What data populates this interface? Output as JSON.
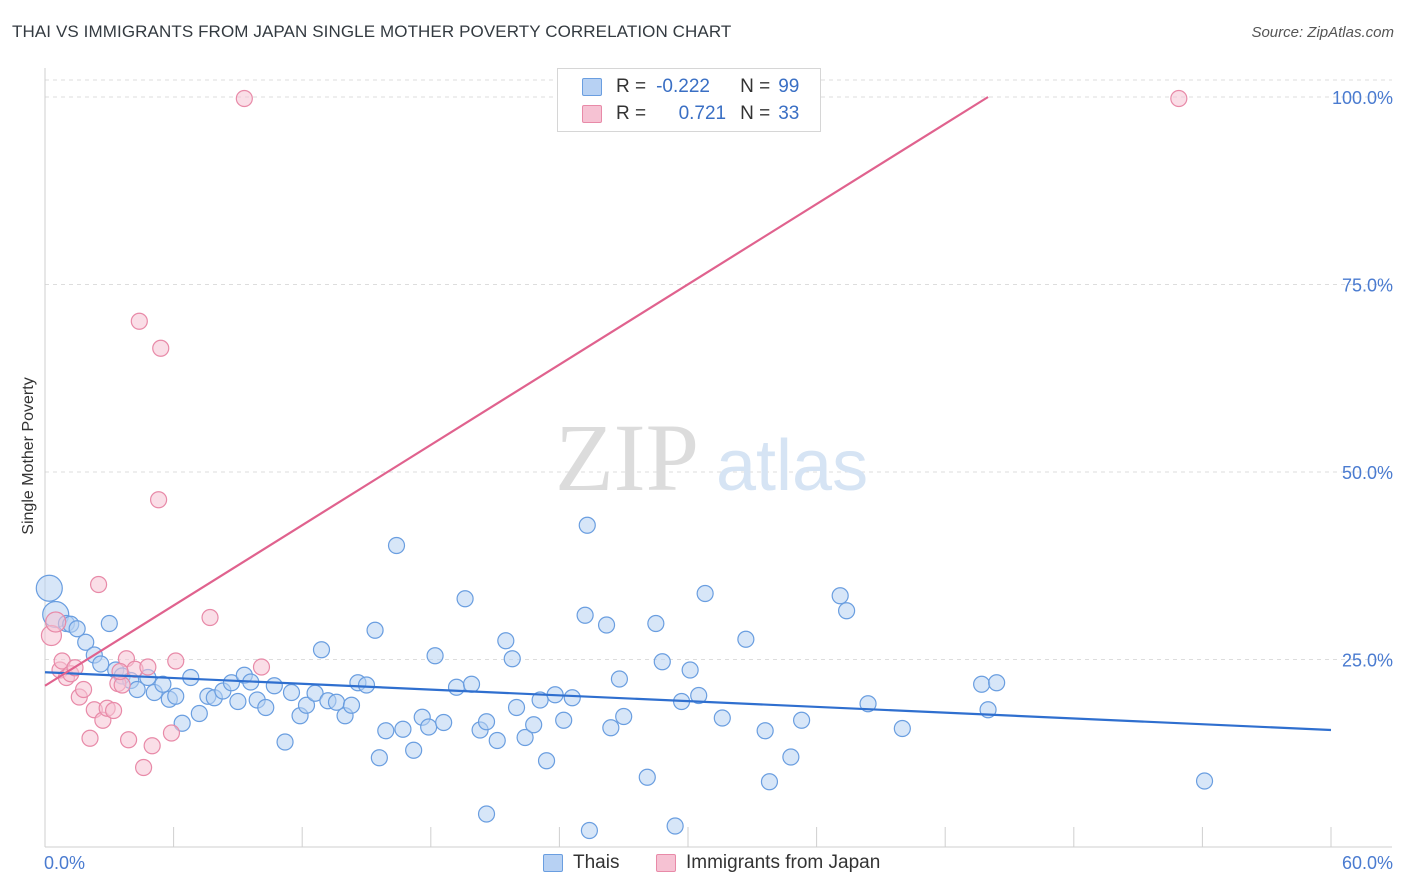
{
  "title": "THAI VS IMMIGRANTS FROM JAPAN SINGLE MOTHER POVERTY CORRELATION CHART",
  "source": "Source: ZipAtlas.com",
  "watermark": {
    "zip": "ZIP",
    "atlas": "atlas"
  },
  "legend": {
    "series1": {
      "r_label": "R =",
      "r_value": "-0.222",
      "n_label": "N =",
      "n_value": "99"
    },
    "series2": {
      "r_label": "R =",
      "r_value": "0.721",
      "n_label": "N =",
      "n_value": "33"
    }
  },
  "bottom_legend": {
    "series1": "Thais",
    "series2": "Immigrants from Japan"
  },
  "colors": {
    "blue_fill": "#b7d1f3",
    "blue_stroke": "#6a9ee0",
    "blue_line": "#2f6fcf",
    "pink_fill": "#f6c2d3",
    "pink_stroke": "#e88aa8",
    "pink_line": "#e0628e",
    "axis_text": "#4a7bd0",
    "grid": "#dddddd"
  },
  "chart_data": {
    "type": "scatter",
    "title": "THAI VS IMMIGRANTS FROM JAPAN SINGLE MOTHER POVERTY CORRELATION CHART",
    "xlabel": "",
    "ylabel": "Single Mother Poverty",
    "xlim": [
      0,
      60
    ],
    "ylim": [
      0,
      100
    ],
    "x_tick_labels": [
      "0.0%",
      "60.0%"
    ],
    "y_ticks": [
      25,
      50,
      75,
      100
    ],
    "y_tick_labels": [
      "25.0%",
      "50.0%",
      "75.0%",
      "100.0%"
    ],
    "series": [
      {
        "name": "Thais",
        "r": -0.222,
        "n": 99,
        "trend": {
          "x": [
            0,
            60
          ],
          "y": [
            23.3,
            15.6
          ]
        },
        "points": [
          [
            0.2,
            34.5
          ],
          [
            0.5,
            31.0
          ],
          [
            1.0,
            29.8
          ],
          [
            1.2,
            29.7
          ],
          [
            1.5,
            29.1
          ],
          [
            1.9,
            27.3
          ],
          [
            2.3,
            25.6
          ],
          [
            2.6,
            24.4
          ],
          [
            3.0,
            29.8
          ],
          [
            3.3,
            23.6
          ],
          [
            3.6,
            22.8
          ],
          [
            4.0,
            22.2
          ],
          [
            4.3,
            21.0
          ],
          [
            4.8,
            22.6
          ],
          [
            5.1,
            20.6
          ],
          [
            5.5,
            21.7
          ],
          [
            5.8,
            19.7
          ],
          [
            6.1,
            20.1
          ],
          [
            6.4,
            16.5
          ],
          [
            6.8,
            22.6
          ],
          [
            7.2,
            17.8
          ],
          [
            7.6,
            20.1
          ],
          [
            7.9,
            19.9
          ],
          [
            8.3,
            20.8
          ],
          [
            8.7,
            21.9
          ],
          [
            9.0,
            19.4
          ],
          [
            9.3,
            22.9
          ],
          [
            9.6,
            22.0
          ],
          [
            9.9,
            19.6
          ],
          [
            10.3,
            18.6
          ],
          [
            10.7,
            21.5
          ],
          [
            11.2,
            14.0
          ],
          [
            11.5,
            20.6
          ],
          [
            11.9,
            17.5
          ],
          [
            12.2,
            18.9
          ],
          [
            12.6,
            20.5
          ],
          [
            12.9,
            26.3
          ],
          [
            13.2,
            19.5
          ],
          [
            13.6,
            19.3
          ],
          [
            14.0,
            17.5
          ],
          [
            14.3,
            18.9
          ],
          [
            14.6,
            21.9
          ],
          [
            15.0,
            21.6
          ],
          [
            15.4,
            28.9
          ],
          [
            15.6,
            11.9
          ],
          [
            15.9,
            15.5
          ],
          [
            16.4,
            40.2
          ],
          [
            16.7,
            15.7
          ],
          [
            17.2,
            12.9
          ],
          [
            17.6,
            17.3
          ],
          [
            17.9,
            16.0
          ],
          [
            18.2,
            25.5
          ],
          [
            18.6,
            16.6
          ],
          [
            19.2,
            21.3
          ],
          [
            19.6,
            33.1
          ],
          [
            19.9,
            21.7
          ],
          [
            20.3,
            15.6
          ],
          [
            20.6,
            16.7
          ],
          [
            21.1,
            14.2
          ],
          [
            21.5,
            27.5
          ],
          [
            21.8,
            25.1
          ],
          [
            22.0,
            18.6
          ],
          [
            22.4,
            14.6
          ],
          [
            22.8,
            16.3
          ],
          [
            23.1,
            19.6
          ],
          [
            23.4,
            11.5
          ],
          [
            23.8,
            20.3
          ],
          [
            24.2,
            16.9
          ],
          [
            24.6,
            19.9
          ],
          [
            25.2,
            30.9
          ],
          [
            25.4,
            2.2
          ],
          [
            26.2,
            29.6
          ],
          [
            26.4,
            15.9
          ],
          [
            26.8,
            22.4
          ],
          [
            27.0,
            17.4
          ],
          [
            28.1,
            9.3
          ],
          [
            28.5,
            29.8
          ],
          [
            28.8,
            24.7
          ],
          [
            29.4,
            2.8
          ],
          [
            29.7,
            19.4
          ],
          [
            30.1,
            23.6
          ],
          [
            30.5,
            20.2
          ],
          [
            30.8,
            33.8
          ],
          [
            31.6,
            17.2
          ],
          [
            32.7,
            27.7
          ],
          [
            33.6,
            15.5
          ],
          [
            33.8,
            8.7
          ],
          [
            34.8,
            12.0
          ],
          [
            35.3,
            16.9
          ],
          [
            37.1,
            33.5
          ],
          [
            37.4,
            31.5
          ],
          [
            38.4,
            19.1
          ],
          [
            40.0,
            15.8
          ],
          [
            43.7,
            21.7
          ],
          [
            44.0,
            18.3
          ],
          [
            44.4,
            21.9
          ],
          [
            54.1,
            8.8
          ],
          [
            25.3,
            42.9
          ],
          [
            20.6,
            4.4
          ]
        ]
      },
      {
        "name": "Immigrants from Japan",
        "r": 0.721,
        "n": 33,
        "trend": {
          "x": [
            0,
            44
          ],
          "y": [
            21.5,
            100
          ]
        },
        "points": [
          [
            0.3,
            28.2
          ],
          [
            0.5,
            30.0
          ],
          [
            0.7,
            23.6
          ],
          [
            0.8,
            24.8
          ],
          [
            1.0,
            22.6
          ],
          [
            1.2,
            23.1
          ],
          [
            1.4,
            23.9
          ],
          [
            1.6,
            20.0
          ],
          [
            1.8,
            21.0
          ],
          [
            2.1,
            14.5
          ],
          [
            2.3,
            18.3
          ],
          [
            2.5,
            35.0
          ],
          [
            2.7,
            16.9
          ],
          [
            2.9,
            18.5
          ],
          [
            3.2,
            18.2
          ],
          [
            3.4,
            21.8
          ],
          [
            3.6,
            21.6
          ],
          [
            3.8,
            25.1
          ],
          [
            3.9,
            14.3
          ],
          [
            4.2,
            23.7
          ],
          [
            4.4,
            70.1
          ],
          [
            4.6,
            10.6
          ],
          [
            4.8,
            24.0
          ],
          [
            5.0,
            13.5
          ],
          [
            5.3,
            46.3
          ],
          [
            5.4,
            66.5
          ],
          [
            5.9,
            15.2
          ],
          [
            6.1,
            24.8
          ],
          [
            7.7,
            30.6
          ],
          [
            9.3,
            99.8
          ],
          [
            10.1,
            24.0
          ],
          [
            52.9,
            99.8
          ],
          [
            3.5,
            23.4
          ]
        ]
      }
    ]
  }
}
